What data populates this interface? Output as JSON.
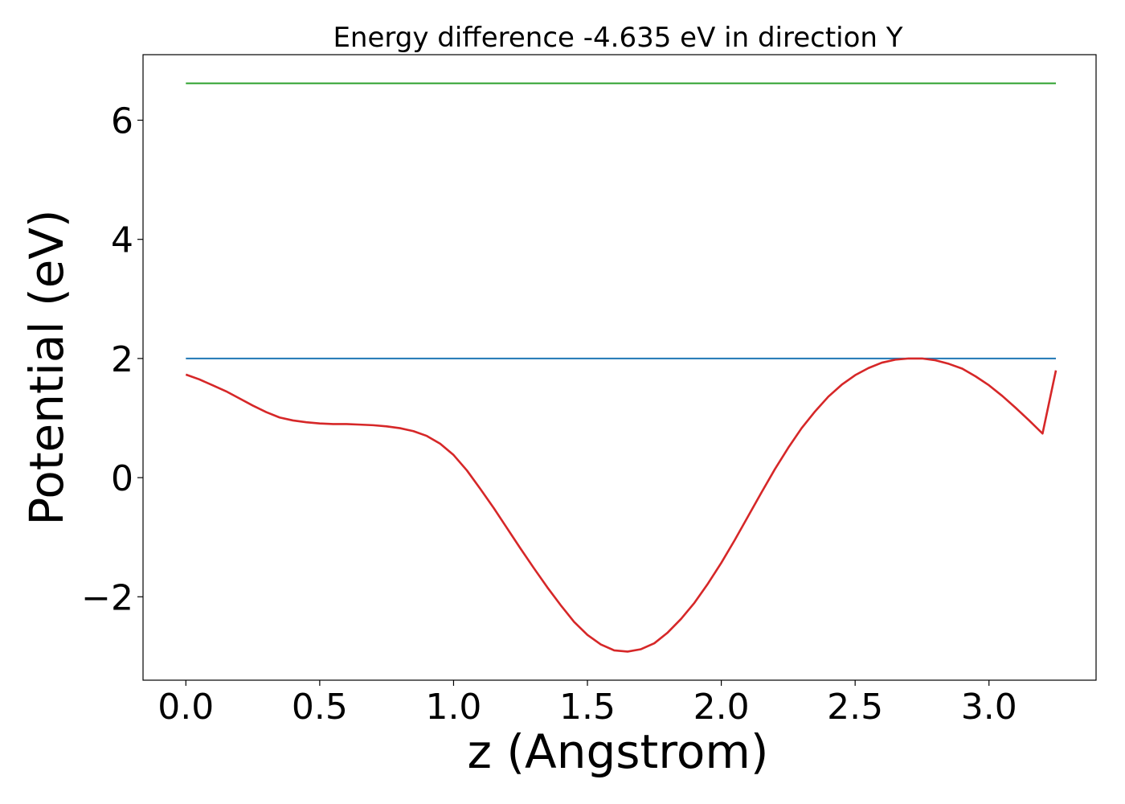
{
  "chart_data": {
    "type": "line",
    "title": "Energy difference -4.635 eV in direction Y",
    "xlabel": "z (Angstrom)",
    "ylabel": "Potential (eV)",
    "xlim": [
      -0.16,
      3.4
    ],
    "ylim": [
      -3.4,
      7.1
    ],
    "xticks": [
      0.0,
      0.5,
      1.0,
      1.5,
      2.0,
      2.5,
      3.0
    ],
    "xtick_labels": [
      "0.0",
      "0.5",
      "1.0",
      "1.5",
      "2.0",
      "2.5",
      "3.0"
    ],
    "yticks": [
      -2,
      0,
      2,
      4,
      6
    ],
    "ytick_labels": [
      "−2",
      "0",
      "2",
      "4",
      "6"
    ],
    "grid": false,
    "series": [
      {
        "color": "#2ca02c",
        "x": [
          0.0,
          3.25
        ],
        "y": [
          6.62,
          6.62
        ]
      },
      {
        "color": "#1f77b4",
        "x": [
          0.0,
          3.25
        ],
        "y": [
          2.0,
          2.0
        ]
      },
      {
        "color": "#d62728",
        "x": [
          0.0,
          0.05,
          0.1,
          0.15,
          0.2,
          0.25,
          0.3,
          0.35,
          0.4,
          0.45,
          0.5,
          0.55,
          0.6,
          0.65,
          0.7,
          0.75,
          0.8,
          0.85,
          0.9,
          0.95,
          1.0,
          1.05,
          1.1,
          1.15,
          1.2,
          1.25,
          1.3,
          1.35,
          1.4,
          1.45,
          1.5,
          1.55,
          1.6,
          1.65,
          1.7,
          1.75,
          1.8,
          1.85,
          1.9,
          1.95,
          2.0,
          2.05,
          2.1,
          2.15,
          2.2,
          2.25,
          2.3,
          2.35,
          2.4,
          2.45,
          2.5,
          2.55,
          2.6,
          2.65,
          2.7,
          2.75,
          2.8,
          2.85,
          2.9,
          2.95,
          3.0,
          3.05,
          3.1,
          3.15,
          3.2,
          3.25
        ],
        "y": [
          1.73,
          1.65,
          1.55,
          1.45,
          1.33,
          1.21,
          1.1,
          1.01,
          0.96,
          0.93,
          0.91,
          0.9,
          0.9,
          0.89,
          0.88,
          0.86,
          0.83,
          0.78,
          0.7,
          0.57,
          0.38,
          0.12,
          -0.19,
          -0.51,
          -0.85,
          -1.19,
          -1.52,
          -1.84,
          -2.14,
          -2.42,
          -2.64,
          -2.8,
          -2.9,
          -2.92,
          -2.88,
          -2.78,
          -2.6,
          -2.37,
          -2.1,
          -1.78,
          -1.43,
          -1.05,
          -0.65,
          -0.25,
          0.14,
          0.5,
          0.83,
          1.11,
          1.36,
          1.56,
          1.72,
          1.84,
          1.93,
          1.98,
          2.0,
          2.0,
          1.97,
          1.91,
          1.83,
          1.7,
          1.55,
          1.37,
          1.17,
          0.96,
          0.74,
          1.8
        ]
      }
    ]
  }
}
